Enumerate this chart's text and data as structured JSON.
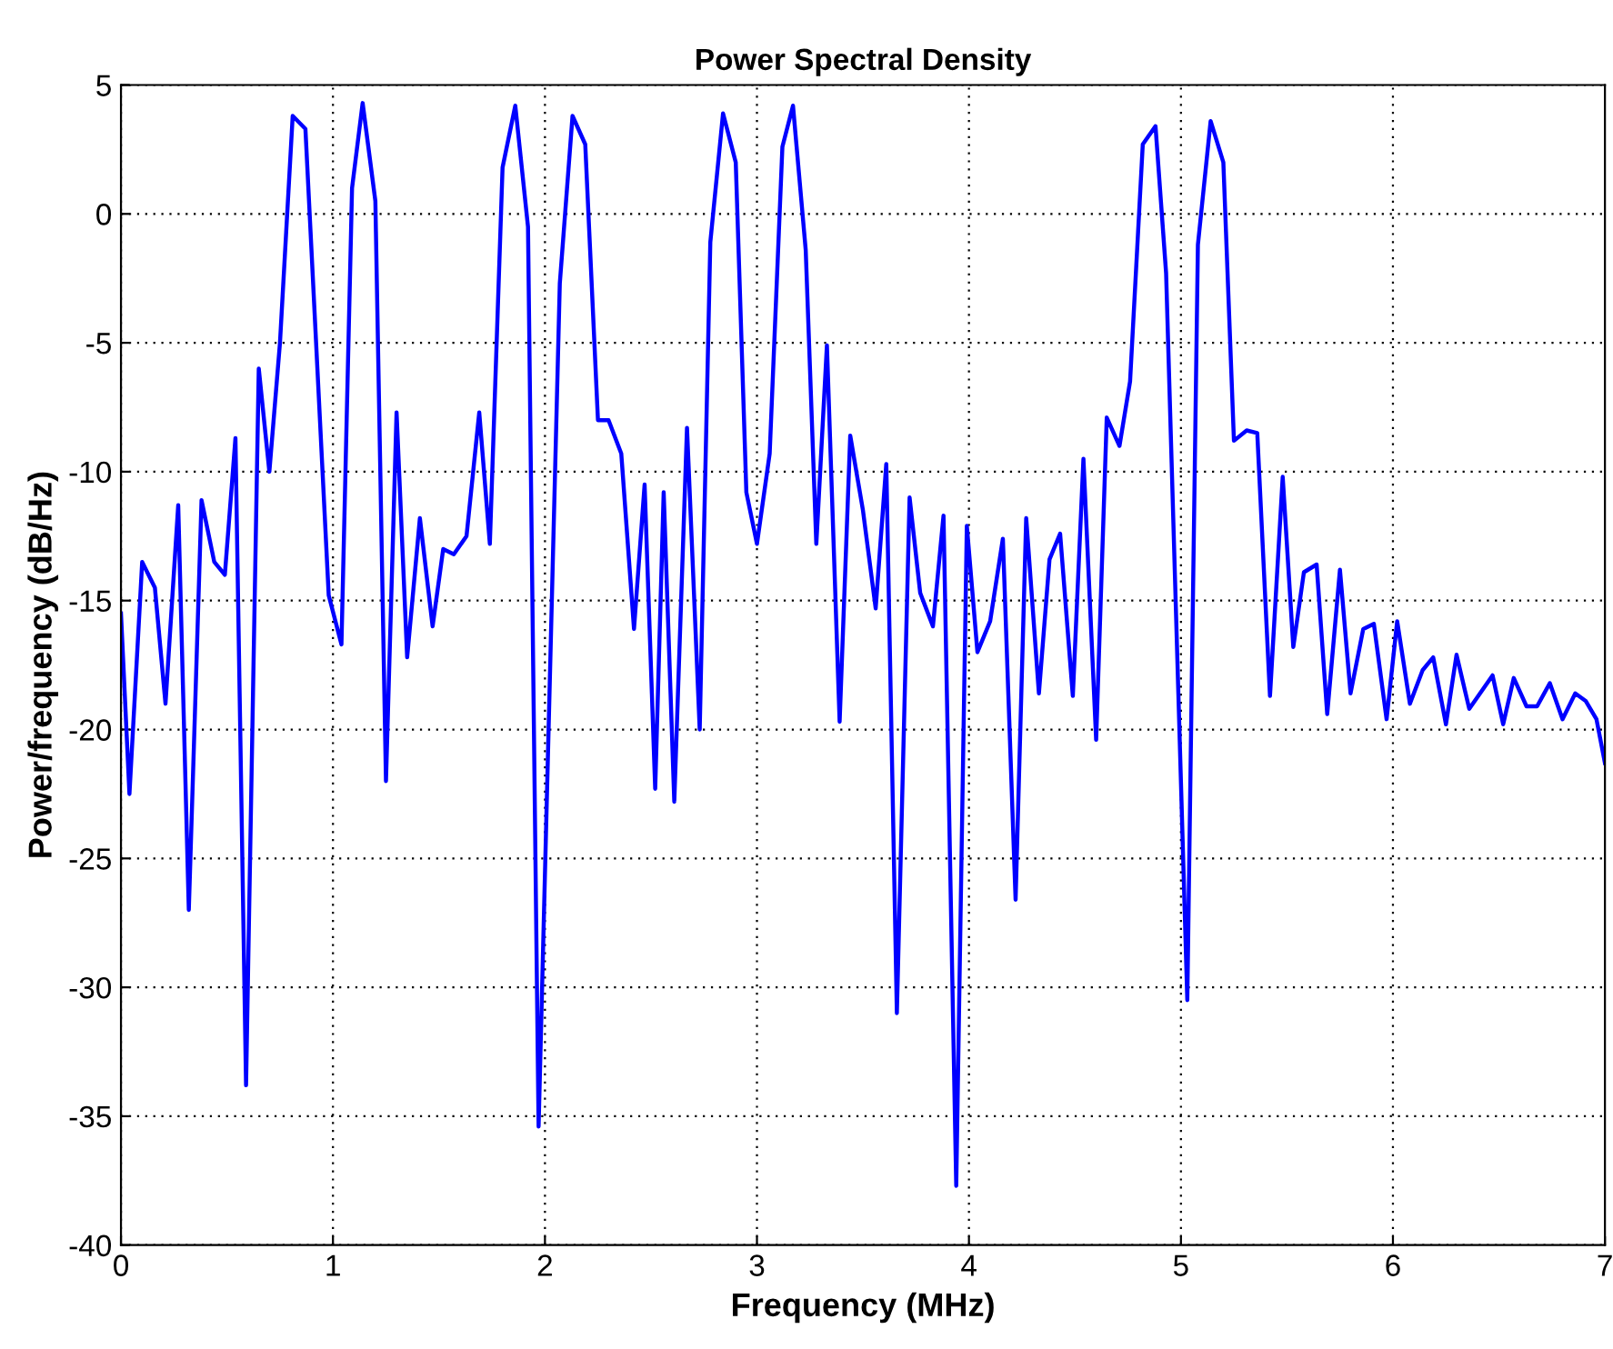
{
  "chart_data": {
    "type": "line",
    "title": "Power Spectral Density",
    "xlabel": "Frequency (MHz)",
    "ylabel": "Power/frequency (dB/Hz)",
    "x": [
      0,
      0.04,
      0.1,
      0.16,
      0.21,
      0.27,
      0.32,
      0.38,
      0.44,
      0.49,
      0.54,
      0.59,
      0.65,
      0.7,
      0.75,
      0.81,
      0.87,
      0.98,
      1.04,
      1.09,
      1.14,
      1.2,
      1.25,
      1.3,
      1.35,
      1.41,
      1.47,
      1.52,
      1.57,
      1.63,
      1.69,
      1.74,
      1.8,
      1.86,
      1.92,
      1.97,
      2.07,
      2.13,
      2.19,
      2.25,
      2.3,
      2.36,
      2.42,
      2.47,
      2.52,
      2.56,
      2.61,
      2.67,
      2.73,
      2.78,
      2.84,
      2.9,
      2.95,
      3.0,
      3.06,
      3.12,
      3.17,
      3.23,
      3.28,
      3.33,
      3.39,
      3.44,
      3.5,
      3.56,
      3.61,
      3.66,
      3.72,
      3.77,
      3.83,
      3.88,
      3.94,
      3.99,
      4.04,
      4.1,
      4.16,
      4.22,
      4.27,
      4.33,
      4.38,
      4.43,
      4.49,
      4.54,
      4.6,
      4.65,
      4.71,
      4.76,
      4.82,
      4.88,
      4.93,
      5.03,
      5.08,
      5.14,
      5.2,
      5.25,
      5.31,
      5.36,
      5.42,
      5.48,
      5.53,
      5.58,
      5.64,
      5.69,
      5.75,
      5.8,
      5.86,
      5.91,
      5.97,
      6.02,
      6.08,
      6.14,
      6.19,
      6.25,
      6.3,
      6.36,
      6.47,
      6.52,
      6.57,
      6.63,
      6.68,
      6.74,
      6.8,
      6.86,
      6.91,
      6.96,
      7.0
    ],
    "series": [
      {
        "color": "#0000ff",
        "values": [
          -15.5,
          -22.5,
          -13.5,
          -14.5,
          -19,
          -11.3,
          -27,
          -11.1,
          -13.5,
          -14,
          -8.7,
          -33.8,
          -6,
          -10,
          -5,
          3.8,
          3.3,
          -14.8,
          -16.7,
          1,
          4.3,
          0.5,
          -22,
          -7.7,
          -17.2,
          -11.8,
          -16,
          -13,
          -13.2,
          -12.5,
          -7.7,
          -12.8,
          1.8,
          4.2,
          -0.5,
          -35.4,
          -2.7,
          3.8,
          2.7,
          -8,
          -8,
          -9.3,
          -16.1,
          -10.5,
          -22.3,
          -10.8,
          -22.8,
          -8.3,
          -20,
          -1.1,
          3.9,
          2,
          -10.8,
          -12.8,
          -9.3,
          2.6,
          4.2,
          -1.4,
          -12.8,
          -5.1,
          -19.7,
          -8.6,
          -11.5,
          -15.3,
          -9.7,
          -31,
          -11,
          -14.7,
          -16,
          -11.7,
          -37.7,
          -12.1,
          -17,
          -15.8,
          -12.6,
          -26.6,
          -11.8,
          -18.6,
          -13.4,
          -12.4,
          -18.7,
          -9.5,
          -20.4,
          -7.9,
          -9,
          -6.5,
          2.7,
          3.4,
          -2.3,
          -30.5,
          -1.2,
          3.6,
          2,
          -8.8,
          -8.4,
          -8.5,
          -18.7,
          -10.2,
          -16.8,
          -13.9,
          -13.6,
          -19.4,
          -13.8,
          -18.6,
          -16.1,
          -15.9,
          -19.6,
          -15.8,
          -19,
          -17.7,
          -17.2,
          -19.8,
          -17.1,
          -19.2,
          -17.9,
          -19.8,
          -18,
          -19.1,
          -19.1,
          -18.2,
          -19.6,
          -18.6,
          -18.9,
          -19.6,
          -21.3
        ]
      }
    ],
    "xlim": [
      0,
      7
    ],
    "ylim": [
      -40,
      5
    ],
    "xticks": [
      0,
      1,
      2,
      3,
      4,
      5,
      6,
      7
    ],
    "yticks": [
      -40,
      -35,
      -30,
      -25,
      -20,
      -15,
      -10,
      -5,
      0,
      5
    ],
    "grid": true,
    "line_style": "solid"
  }
}
